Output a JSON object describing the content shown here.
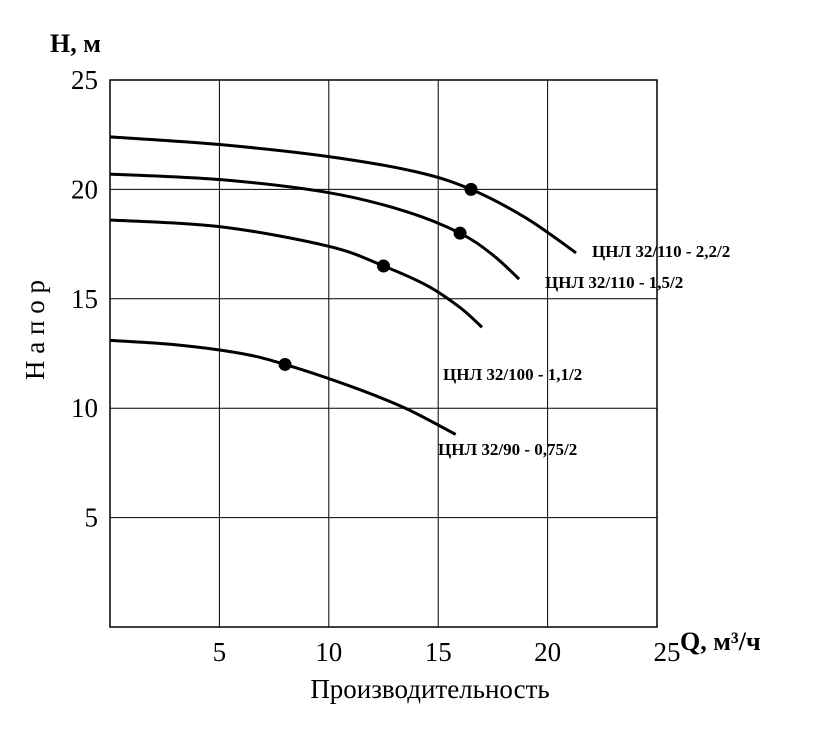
{
  "chart_data": {
    "type": "line",
    "title": "",
    "y_unit_label": "Н, м",
    "x_unit_label": "Q, м³/ч",
    "xlabel": "Производительность",
    "ylabel": "Н а п о р",
    "xlim": [
      0,
      25
    ],
    "ylim": [
      0,
      25
    ],
    "x_ticks": [
      "5",
      "10",
      "15",
      "20",
      "25"
    ],
    "y_ticks": [
      "5",
      "10",
      "15",
      "20",
      "25"
    ],
    "grid": true,
    "series": [
      {
        "name": "ЦНЛ 32/110 - 2,2/2",
        "points": [
          [
            0,
            22.4
          ],
          [
            5,
            22.05
          ],
          [
            10,
            21.5
          ],
          [
            14,
            20.8
          ],
          [
            16.5,
            20.0
          ],
          [
            19,
            18.7
          ],
          [
            21.3,
            17.1
          ]
        ],
        "duty_point": [
          16.5,
          20.0
        ]
      },
      {
        "name": "ЦНЛ 32/110 - 1,5/2",
        "points": [
          [
            0,
            20.7
          ],
          [
            5,
            20.45
          ],
          [
            10,
            19.85
          ],
          [
            13.5,
            19.0
          ],
          [
            16,
            18.0
          ],
          [
            17.5,
            17.0
          ],
          [
            18.7,
            15.9
          ]
        ],
        "duty_point": [
          16.0,
          18.0
        ]
      },
      {
        "name": "ЦНЛ 32/100 - 1,1/2",
        "points": [
          [
            0,
            18.6
          ],
          [
            5,
            18.3
          ],
          [
            10,
            17.4
          ],
          [
            12.5,
            16.5
          ],
          [
            14.5,
            15.6
          ],
          [
            16,
            14.6
          ],
          [
            17,
            13.7
          ]
        ],
        "duty_point": [
          12.5,
          16.5
        ]
      },
      {
        "name": "ЦНЛ 32/90 - 0,75/2",
        "points": [
          [
            0,
            13.1
          ],
          [
            3,
            12.9
          ],
          [
            6,
            12.5
          ],
          [
            8,
            12.0
          ],
          [
            11,
            11.0
          ],
          [
            13.5,
            10.0
          ],
          [
            15.8,
            8.8
          ]
        ],
        "duty_point": [
          8.0,
          12.0
        ]
      }
    ]
  }
}
